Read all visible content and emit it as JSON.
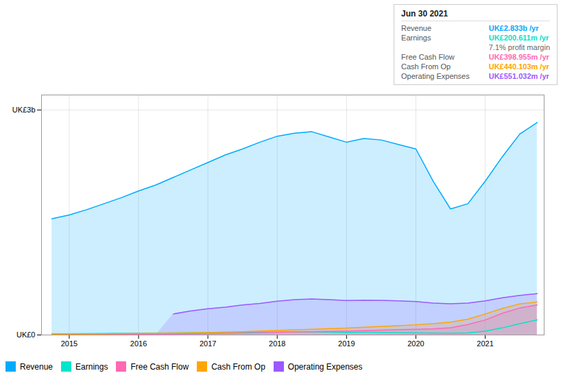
{
  "chart_data": {
    "type": "area",
    "x": [
      2014.75,
      2015.0,
      2015.25,
      2015.5,
      2015.75,
      2016.0,
      2016.25,
      2016.5,
      2016.75,
      2017.0,
      2017.25,
      2017.5,
      2017.75,
      2018.0,
      2018.25,
      2018.5,
      2018.75,
      2019.0,
      2019.25,
      2019.5,
      2019.75,
      2020.0,
      2020.25,
      2020.5,
      2020.75,
      2021.0,
      2021.25,
      2021.5,
      2021.75
    ],
    "xlim": [
      2014.6,
      2021.85
    ],
    "xticks": [
      2015,
      2016,
      2017,
      2018,
      2019,
      2020,
      2021
    ],
    "ylim": [
      0,
      3.2
    ],
    "yticks": [
      {
        "value": 0,
        "label": "UK£0"
      },
      {
        "value": 3,
        "label": "UK£3b"
      }
    ],
    "grid": true,
    "legend": "bottom left",
    "annotations": [
      [
        "Jun 30 2021"
      ],
      [
        "Revenue",
        "UK£2.833b /yr"
      ],
      [
        "Earnings",
        "UK£200.611m /yr"
      ],
      [
        "7.1% profit margin"
      ],
      [
        "Free Cash Flow",
        "UK£398.955m /yr"
      ],
      [
        "Cash From Op",
        "UK£440.103m /yr"
      ],
      [
        "Operating Expenses",
        "UK£551.032m /yr"
      ]
    ],
    "series": [
      {
        "name": "Revenue",
        "color": "#00aaff",
        "type": "area",
        "values": [
          1.55,
          1.6,
          1.67,
          1.75,
          1.83,
          1.92,
          2.0,
          2.1,
          2.2,
          2.3,
          2.4,
          2.48,
          2.57,
          2.65,
          2.69,
          2.71,
          2.64,
          2.57,
          2.62,
          2.6,
          2.54,
          2.48,
          2.05,
          1.68,
          1.75,
          2.05,
          2.38,
          2.68,
          2.833
        ]
      },
      {
        "name": "Earnings",
        "color": "#00e5cc",
        "type": "line",
        "values": [
          0.015,
          0.015,
          0.018,
          0.02,
          0.022,
          0.024,
          0.025,
          0.028,
          0.03,
          0.03,
          0.032,
          0.035,
          0.038,
          0.04,
          0.042,
          0.04,
          0.038,
          0.035,
          0.036,
          0.034,
          0.03,
          0.028,
          0.025,
          0.022,
          0.028,
          0.05,
          0.095,
          0.15,
          0.2006
        ]
      },
      {
        "name": "Free Cash Flow",
        "color": "#ff69b4",
        "type": "area",
        "values": [
          0.01,
          0.01,
          0.01,
          0.011,
          0.011,
          0.012,
          0.013,
          0.014,
          0.016,
          0.018,
          0.022,
          0.026,
          0.03,
          0.035,
          0.04,
          0.044,
          0.048,
          0.052,
          0.058,
          0.065,
          0.07,
          0.075,
          0.082,
          0.095,
          0.14,
          0.2,
          0.29,
          0.36,
          0.399
        ]
      },
      {
        "name": "Cash From Op",
        "color": "#ffa500",
        "type": "area",
        "values": [
          0.012,
          0.013,
          0.014,
          0.016,
          0.018,
          0.02,
          0.022,
          0.025,
          0.028,
          0.032,
          0.038,
          0.044,
          0.052,
          0.06,
          0.068,
          0.076,
          0.084,
          0.092,
          0.102,
          0.114,
          0.124,
          0.136,
          0.15,
          0.172,
          0.21,
          0.28,
          0.355,
          0.415,
          0.44
        ]
      },
      {
        "name": "Operating Expenses",
        "color": "#9b59ff",
        "type": "area",
        "values": [
          null,
          null,
          null,
          null,
          null,
          null,
          null,
          0.28,
          0.32,
          0.35,
          0.37,
          0.4,
          0.42,
          0.45,
          0.47,
          0.48,
          0.47,
          0.46,
          0.465,
          0.462,
          0.455,
          0.445,
          0.425,
          0.415,
          0.425,
          0.455,
          0.495,
          0.528,
          0.551
        ]
      }
    ]
  }
}
